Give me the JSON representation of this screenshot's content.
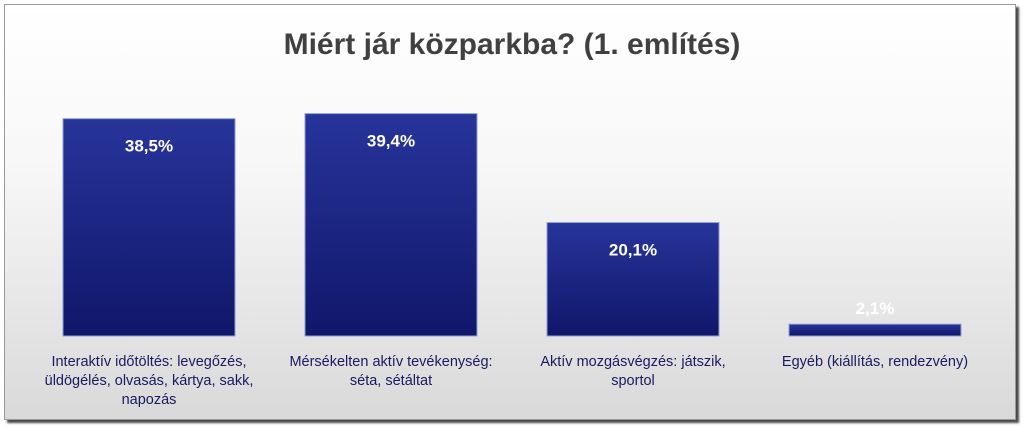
{
  "chart_data": {
    "type": "bar",
    "title": "Miért jár közparkba? (1. említés)",
    "categories": [
      [
        "Interaktív időtöltés: levegőzés,",
        "üldögélés, olvasás, kártya, sakk,",
        "napozás"
      ],
      [
        "Mérsékelten aktív tevékenység:",
        "séta, sétáltat"
      ],
      [
        "Aktív mozgásvégzés: játszik,",
        "sportol"
      ],
      [
        "Egyéb (kiállítás, rendezvény)"
      ]
    ],
    "values": [
      38.5,
      39.4,
      20.1,
      2.1
    ],
    "value_labels": [
      "38,5%",
      "39,4%",
      "20,1%",
      "2,1%"
    ],
    "ylim": [
      0,
      45
    ],
    "grid": false,
    "legend": "none",
    "colors": {
      "bar_top": "#27349a",
      "bar_bottom": "#10176a",
      "bar_border": "#8f9fd0"
    }
  }
}
